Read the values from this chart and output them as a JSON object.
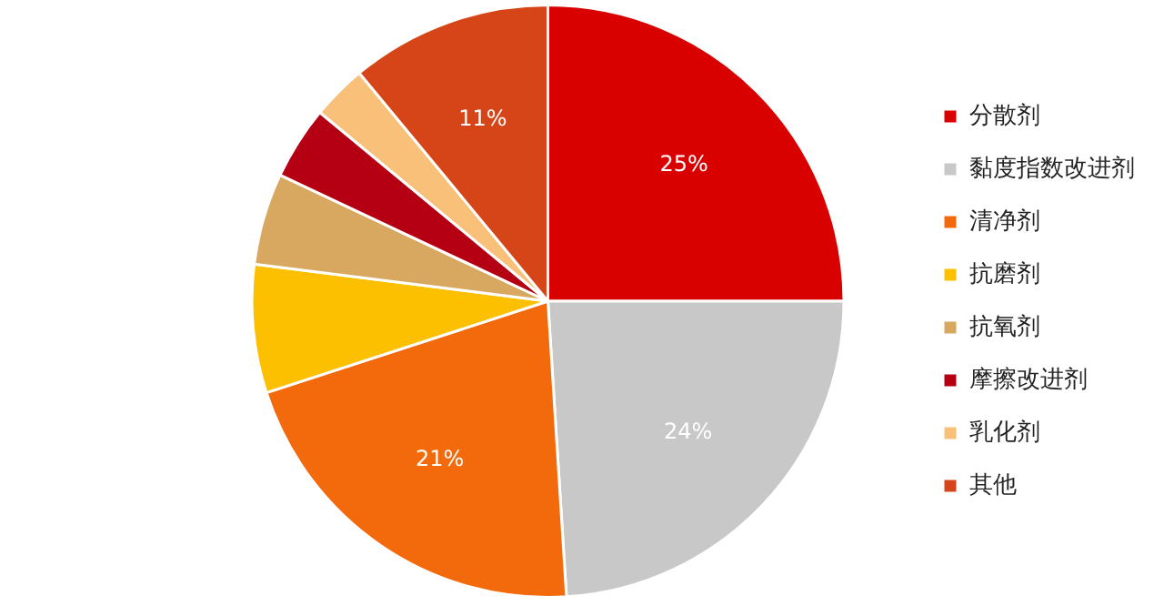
{
  "chart_data": {
    "type": "pie",
    "categories": [
      "分散剂",
      "黏度指数改进剂",
      "清净剂",
      "抗磨剂",
      "抗氧剂",
      "摩擦改进剂",
      "乳化剂",
      "其他"
    ],
    "values": [
      25,
      24,
      21,
      7,
      5,
      4,
      3,
      11
    ],
    "colors": [
      "#d90000",
      "#c8c8c8",
      "#f26a0c",
      "#fcc000",
      "#d9a860",
      "#b50014",
      "#f8c078",
      "#d64517"
    ],
    "value_labels": [
      "25%",
      "24%",
      "21%",
      null,
      null,
      null,
      null,
      "11%"
    ],
    "legend": "right"
  }
}
